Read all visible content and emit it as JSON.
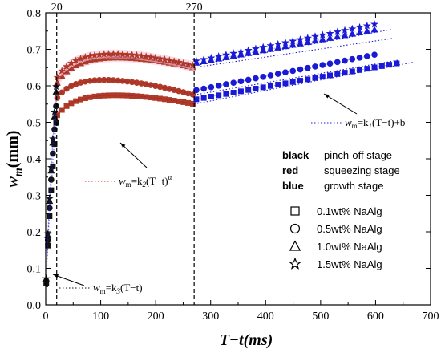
{
  "chart_data": {
    "type": "scatter",
    "xlabel": "T−t(ms)",
    "ylabel": "w_m(mm)",
    "xlim": [
      0,
      700
    ],
    "ylim": [
      0,
      0.8
    ],
    "x_ticks": [
      "0",
      "100",
      "200",
      "300",
      "400",
      "500",
      "600",
      "700"
    ],
    "y_ticks": [
      "0.0",
      "0.1",
      "0.2",
      "0.3",
      "0.4",
      "0.5",
      "0.6",
      "0.7",
      "0.8"
    ],
    "vlines": [
      {
        "x": 20,
        "label": "20"
      },
      {
        "x": 270,
        "label": "270"
      }
    ],
    "stage_colors": {
      "pinch_off": "#111111",
      "squeezing": "#b03a24",
      "growth": "#1a1ad6"
    },
    "stage_legend": [
      {
        "key": "black",
        "color": "#000000",
        "text": "pinch-off stage"
      },
      {
        "key": "red",
        "color": "#c0281c",
        "text": "squeezing stage"
      },
      {
        "key": "blue",
        "color": "#1a1ad6",
        "text": "growth stage"
      }
    ],
    "marker_legend": [
      {
        "marker": "square",
        "text": "0.1wt%  NaAlg"
      },
      {
        "marker": "circle",
        "text": "0.5wt%  NaAlg"
      },
      {
        "marker": "triangle",
        "text": "1.0wt%  NaAlg"
      },
      {
        "marker": "star",
        "text": "1.5wt%  NaAlg"
      }
    ],
    "equations": {
      "linear": {
        "pre": "=k",
        "sub": "1",
        "post": "(T−t)+b"
      },
      "power": {
        "pre": "=k",
        "sub": "2",
        "post": "(T−t)",
        "sup": "α"
      },
      "initial": {
        "pre": "=k",
        "sub": "3",
        "post": "(T−t)"
      },
      "var_main": "w",
      "var_sub": "m"
    },
    "series": [
      {
        "marker": "square",
        "a": 0.33,
        "b": 0.15,
        "end": 0.55,
        "slope": 0.00027,
        "xmax": 640,
        "fitEnd": 0.665
      },
      {
        "marker": "circle",
        "a": 0.355,
        "b": 0.155,
        "end": 0.575,
        "slope": 0.0003,
        "xmax": 610,
        "fitEnd": 0.67
      },
      {
        "marker": "triangle",
        "a": 0.375,
        "b": 0.16,
        "end": 0.65,
        "slope": 0.00028,
        "xmax": 600,
        "fitEnd": 0.73
      },
      {
        "marker": "star",
        "a": 0.39,
        "b": 0.155,
        "end": 0.655,
        "slope": 0.00031,
        "xmax": 600,
        "fitEnd": 0.755
      }
    ]
  }
}
